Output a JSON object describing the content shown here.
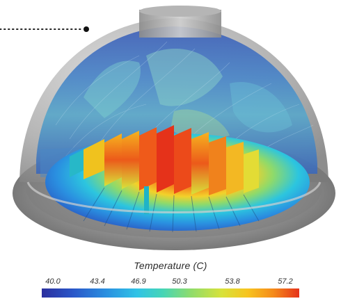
{
  "legend": {
    "title": "Temperature (C)",
    "ticks": [
      "40.0",
      "43.4",
      "46.9",
      "50.3",
      "53.8",
      "57.2"
    ],
    "colormap": [
      "#2b2f9e",
      "#2a56c8",
      "#2a8fe0",
      "#30c3e6",
      "#46d5b6",
      "#8fdc6b",
      "#d8e23a",
      "#f7c41f",
      "#f58a1a",
      "#e5321a"
    ]
  },
  "scene": {
    "subject": "dome-enclosure-thermal-simulation",
    "shell_color": "#9a9a9a",
    "hot_color": "#e5321a",
    "cool_color": "#2a56c8"
  }
}
